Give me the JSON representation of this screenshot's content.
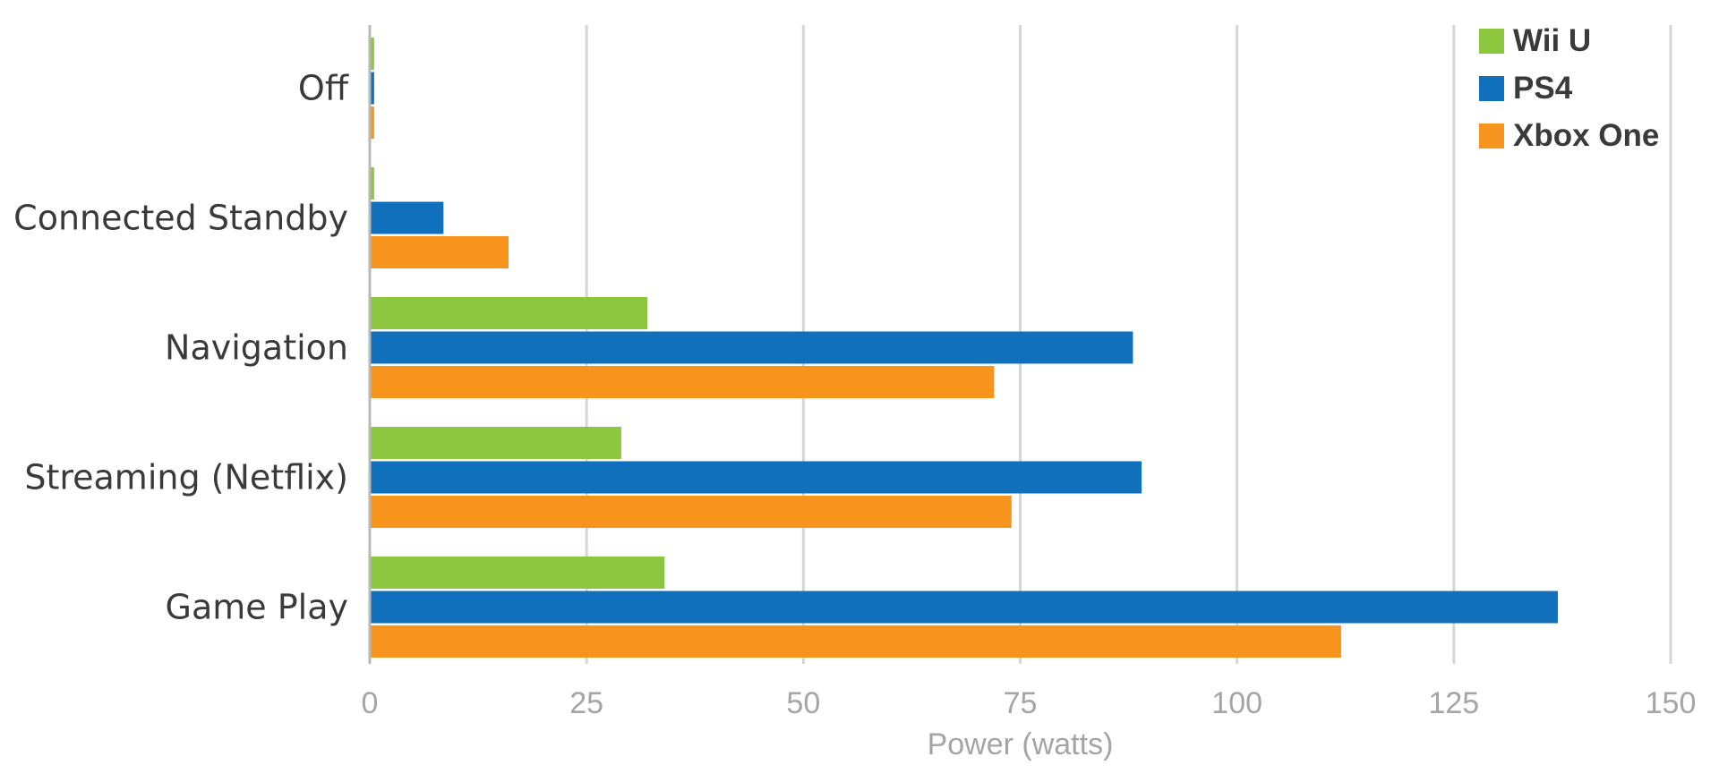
{
  "chart_data": {
    "type": "bar",
    "orientation": "horizontal",
    "categories": [
      "Off",
      "Connected Standby",
      "Navigation",
      "Streaming (Netflix)",
      "Game Play"
    ],
    "series": [
      {
        "name": "Wii U",
        "color": "#8dc63f",
        "values": [
          0.5,
          0.5,
          32,
          29,
          34
        ]
      },
      {
        "name": "PS4",
        "color": "#1170bb",
        "values": [
          0.5,
          8.5,
          88,
          89,
          137
        ]
      },
      {
        "name": "Xbox One",
        "color": "#f7941d",
        "values": [
          0.5,
          16,
          72,
          74,
          112
        ]
      }
    ],
    "xlabel": "Power (watts)",
    "ylabel": "",
    "xlim": [
      0,
      150
    ],
    "xticks": [
      "0",
      "25",
      "50",
      "75",
      "100",
      "125",
      "150"
    ],
    "grid": true,
    "legend_position": "top-right"
  }
}
